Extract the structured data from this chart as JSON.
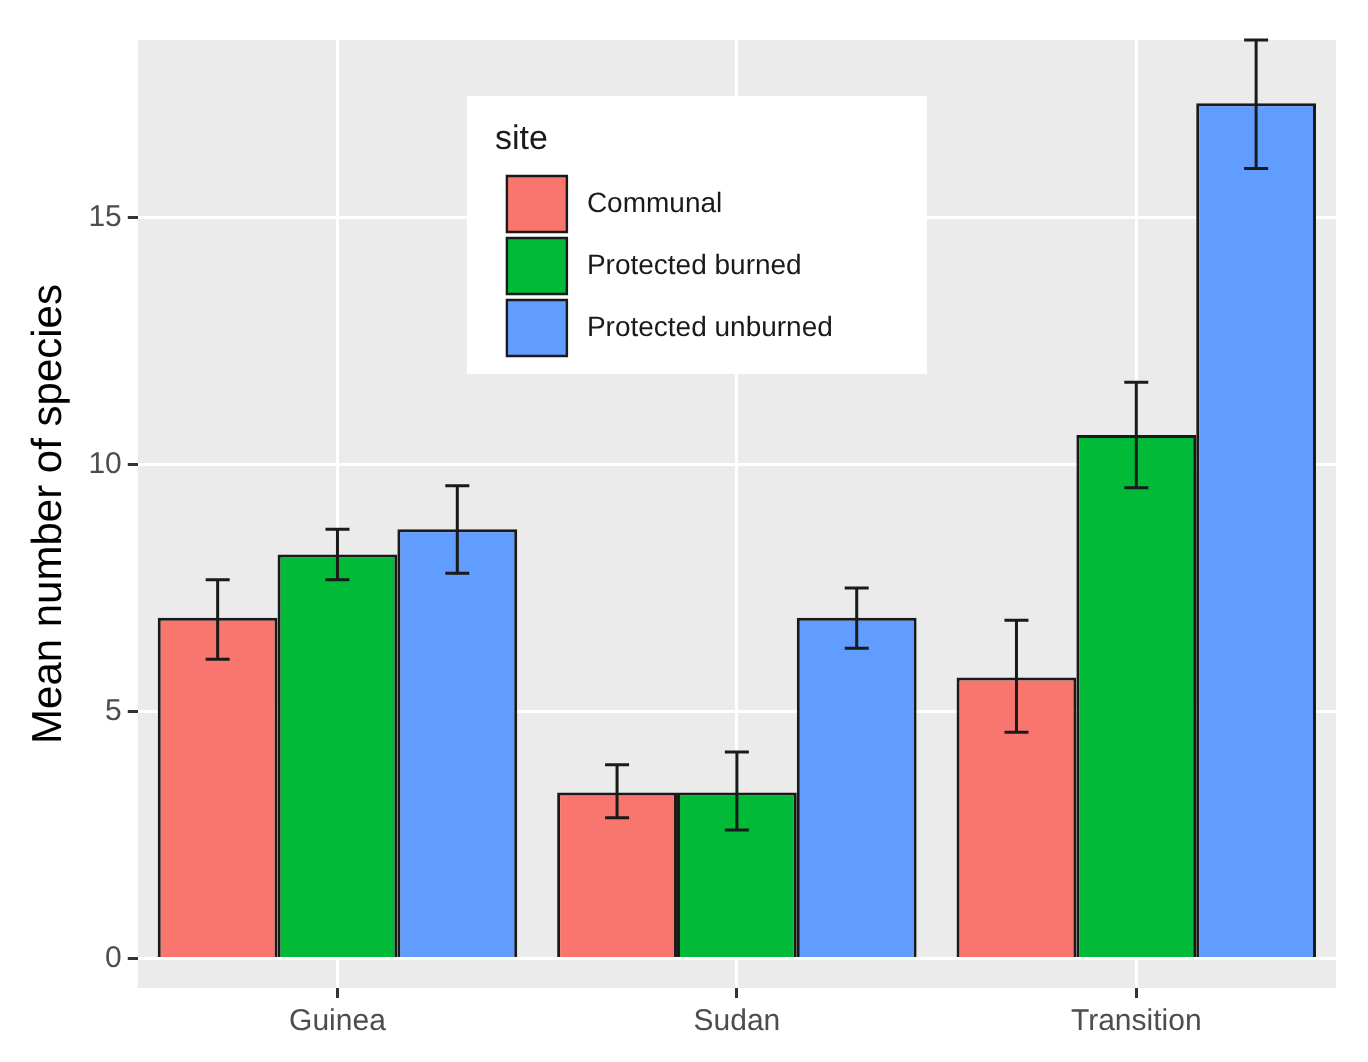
{
  "chart_data": {
    "type": "bar",
    "ylabel": "Mean number of species",
    "legend_title": "site",
    "categories": [
      "Guinea",
      "Sudan",
      "Transition"
    ],
    "series": [
      {
        "name": "Communal",
        "color": "#f8766d",
        "values": [
          6.9,
          3.36,
          5.69
        ],
        "errors": [
          [
            6.06,
            7.67
          ],
          [
            2.85,
            3.92
          ],
          [
            4.58,
            6.85
          ]
        ]
      },
      {
        "name": "Protected burned",
        "color": "#00ba38",
        "values": [
          8.18,
          3.36,
          10.6
        ],
        "errors": [
          [
            7.67,
            8.69
          ],
          [
            2.6,
            4.18
          ],
          [
            9.53,
            11.67
          ]
        ]
      },
      {
        "name": "Protected unburned",
        "color": "#619cff",
        "values": [
          8.69,
          6.9,
          17.32
        ],
        "errors": [
          [
            7.8,
            9.57
          ],
          [
            6.28,
            7.5
          ],
          [
            16.0,
            18.6
          ]
        ]
      }
    ],
    "ylim": [
      -0.6,
      18.6
    ],
    "yticks": [
      0,
      5,
      10,
      15
    ],
    "grid": true,
    "legend": "top"
  }
}
